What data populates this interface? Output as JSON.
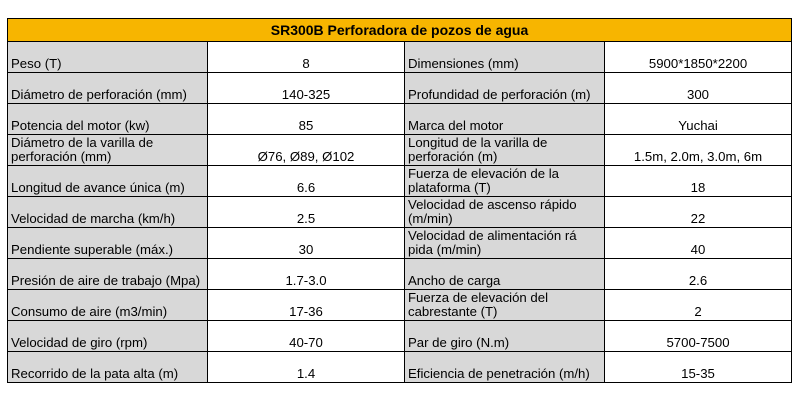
{
  "title": "SR300B Perforadora de pozos de agua",
  "rows": [
    {
      "l1": "Peso (T)",
      "v1": "8",
      "l2": "Dimensiones (mm)",
      "v2": "5900*1850*2200"
    },
    {
      "l1": "Diámetro de perforación (mm)",
      "v1": "140-325",
      "l2": "Profundidad de perforación (m)",
      "v2": "300"
    },
    {
      "l1": "Potencia del motor (kw)",
      "v1": "85",
      "l2": "Marca del motor",
      "v2": "Yuchai"
    },
    {
      "l1": "Diámetro de la varilla de perforación (mm)",
      "v1": "Ø76, Ø89, Ø102",
      "l2": "Longitud de la varilla de perforación (m)",
      "v2": "1.5m, 2.0m, 3.0m, 6m"
    },
    {
      "l1": "Longitud de avance única (m)",
      "v1": "6.6",
      "l2": "Fuerza de elevación de la plataforma (T)",
      "v2": "18"
    },
    {
      "l1": "Velocidad de marcha (km/h)",
      "v1": "2.5",
      "l2": "Velocidad de ascenso rápido (m/min)",
      "v2": "22"
    },
    {
      "l1": "Pendiente superable (máx.)",
      "v1": "30",
      "l2": "Velocidad de alimentación rá pida (m/min)",
      "v2": "40"
    },
    {
      "l1": "Presión de aire de trabajo (Mpa)",
      "v1": "1.7-3.0",
      "l2": "Ancho de carga",
      "v2": "2.6"
    },
    {
      "l1": "Consumo de aire (m3/min)",
      "v1": "17-36",
      "l2": "Fuerza de elevación del cabrestante (T)",
      "v2": "2"
    },
    {
      "l1": "Velocidad de giro (rpm)",
      "v1": "40-70",
      "l2": "Par de giro (N.m)",
      "v2": "5700-7500"
    },
    {
      "l1": "Recorrido de la pata alta (m)",
      "v1": "1.4",
      "l2": "Eficiencia de penetración (m/h)",
      "v2": "15-35"
    }
  ]
}
